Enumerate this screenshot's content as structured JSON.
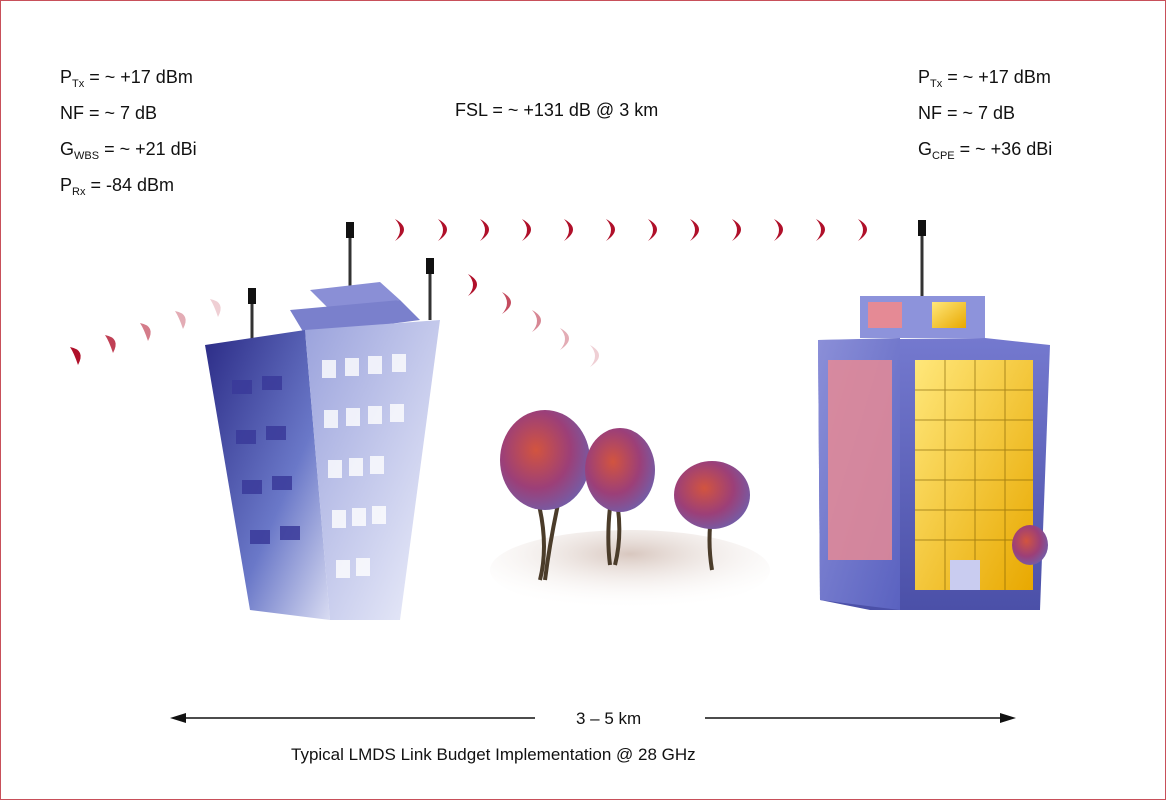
{
  "left_station": {
    "ptx": {
      "symbol": "P",
      "sub": "Tx",
      "value": " = ~ +17 dBm"
    },
    "nf": {
      "symbol": "NF",
      "sub": "",
      "value": " = ~ 7 dB"
    },
    "gain": {
      "symbol": "G",
      "sub": "WBS",
      "value": " = ~ +21 dBi"
    },
    "prx": {
      "symbol": "P",
      "sub": "Rx",
      "value": " = -84 dBm"
    }
  },
  "right_station": {
    "ptx": {
      "symbol": "P",
      "sub": "Tx",
      "value": " = ~ +17 dBm"
    },
    "nf": {
      "symbol": "NF",
      "sub": "",
      "value": " = ~ 7 dB"
    },
    "gain": {
      "symbol": "G",
      "sub": "CPE",
      "value": " = ~ +36 dBi"
    }
  },
  "fsl": "FSL = ~ +131 dB @ 3 km",
  "distance": "3 – 5 km",
  "caption": "Typical LMDS Link Budget Implementation @ 28 GHz",
  "colors": {
    "wave": "#b0102a",
    "frame": "#c8505a",
    "building_left": "#5a5ab0",
    "building_right": "#7b84d6",
    "window_yellow": "#f2c20f",
    "window_pink": "#d77a88"
  }
}
